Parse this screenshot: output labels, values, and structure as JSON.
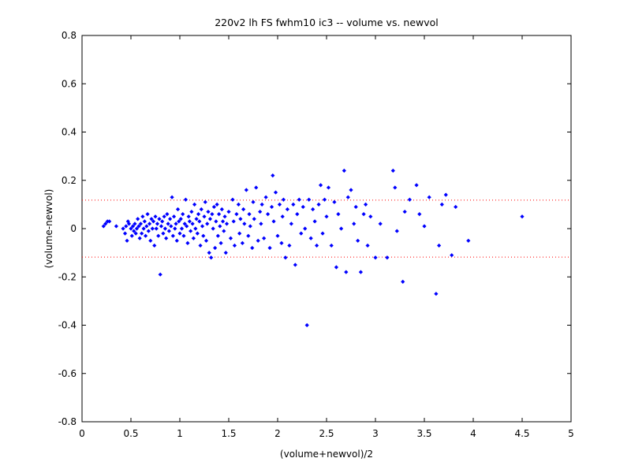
{
  "chart_data": {
    "type": "scatter",
    "title": "220v2 lh FS fwhm10 ic3 -- volume vs. newvol",
    "xlabel": "(volume+newvol)/2",
    "ylabel": "(volume-newvol)",
    "xlim": [
      0,
      5
    ],
    "ylim": [
      -0.8,
      0.8
    ],
    "xticks": [
      0,
      0.5,
      1,
      1.5,
      2,
      2.5,
      3,
      3.5,
      4,
      4.5,
      5
    ],
    "yticks": [
      0.8,
      0.6,
      0.4,
      0.2,
      0,
      -0.2,
      -0.4,
      -0.6,
      -0.8
    ],
    "grid": false,
    "colors": {
      "points": "#0000ff",
      "reference_lines": "#ff0000",
      "axes": "#000000"
    },
    "reference_lines": [
      0.118,
      -0.118
    ],
    "series": [
      {
        "points": [
          [
            0.22,
            0.01
          ],
          [
            0.24,
            0.02
          ],
          [
            0.26,
            0.03
          ],
          [
            0.28,
            0.03
          ],
          [
            0.35,
            0.01
          ],
          [
            0.42,
            0.0
          ],
          [
            0.44,
            -0.02
          ],
          [
            0.45,
            0.01
          ],
          [
            0.46,
            -0.05
          ],
          [
            0.47,
            0.03
          ],
          [
            0.48,
            0.02
          ],
          [
            0.5,
            0.0
          ],
          [
            0.51,
            -0.03
          ],
          [
            0.52,
            0.01
          ],
          [
            0.53,
            -0.01
          ],
          [
            0.54,
            0.02
          ],
          [
            0.55,
            -0.02
          ],
          [
            0.56,
            0.0
          ],
          [
            0.57,
            0.04
          ],
          [
            0.58,
            0.01
          ],
          [
            0.59,
            -0.04
          ],
          [
            0.6,
            0.02
          ],
          [
            0.61,
            -0.02
          ],
          [
            0.62,
            0.05
          ],
          [
            0.63,
            0.0
          ],
          [
            0.64,
            0.03
          ],
          [
            0.65,
            -0.03
          ],
          [
            0.66,
            0.01
          ],
          [
            0.67,
            0.06
          ],
          [
            0.68,
            -0.01
          ],
          [
            0.69,
            0.02
          ],
          [
            0.7,
            -0.05
          ],
          [
            0.71,
            0.04
          ],
          [
            0.72,
            0.0
          ],
          [
            0.73,
            0.03
          ],
          [
            0.74,
            -0.07
          ],
          [
            0.75,
            0.05
          ],
          [
            0.76,
            0.0
          ],
          [
            0.77,
            0.02
          ],
          [
            0.78,
            -0.03
          ],
          [
            0.79,
            0.04
          ],
          [
            0.8,
            -0.19
          ],
          [
            0.81,
            0.01
          ],
          [
            0.82,
            0.03
          ],
          [
            0.83,
            -0.02
          ],
          [
            0.84,
            0.05
          ],
          [
            0.85,
            0.0
          ],
          [
            0.86,
            -0.04
          ],
          [
            0.87,
            0.06
          ],
          [
            0.88,
            0.02
          ],
          [
            0.89,
            -0.01
          ],
          [
            0.9,
            0.04
          ],
          [
            0.91,
            0.01
          ],
          [
            0.92,
            0.13
          ],
          [
            0.93,
            -0.03
          ],
          [
            0.94,
            0.05
          ],
          [
            0.95,
            0.0
          ],
          [
            0.96,
            0.02
          ],
          [
            0.97,
            -0.05
          ],
          [
            0.98,
            0.08
          ],
          [
            0.99,
            0.03
          ],
          [
            1.0,
            -0.02
          ],
          [
            1.01,
            0.04
          ],
          [
            1.02,
            0.0
          ],
          [
            1.03,
            0.06
          ],
          [
            1.04,
            -0.03
          ],
          [
            1.05,
            0.02
          ],
          [
            1.06,
            0.12
          ],
          [
            1.07,
            0.01
          ],
          [
            1.08,
            -0.06
          ],
          [
            1.09,
            0.05
          ],
          [
            1.1,
            0.03
          ],
          [
            1.11,
            -0.01
          ],
          [
            1.12,
            0.07
          ],
          [
            1.13,
            0.02
          ],
          [
            1.14,
            -0.04
          ],
          [
            1.15,
            0.1
          ],
          [
            1.16,
            0.0
          ],
          [
            1.17,
            0.04
          ],
          [
            1.18,
            -0.02
          ],
          [
            1.19,
            0.06
          ],
          [
            1.2,
            0.03
          ],
          [
            1.21,
            -0.07
          ],
          [
            1.22,
            0.08
          ],
          [
            1.23,
            0.01
          ],
          [
            1.24,
            -0.03
          ],
          [
            1.25,
            0.05
          ],
          [
            1.26,
            0.11
          ],
          [
            1.27,
            -0.05
          ],
          [
            1.28,
            0.02
          ],
          [
            1.29,
            0.07
          ],
          [
            1.3,
            -0.1
          ],
          [
            1.31,
            0.04
          ],
          [
            1.32,
            -0.12
          ],
          [
            1.33,
            0.06
          ],
          [
            1.34,
            0.0
          ],
          [
            1.35,
            0.09
          ],
          [
            1.36,
            -0.08
          ],
          [
            1.37,
            0.03
          ],
          [
            1.38,
            0.1
          ],
          [
            1.39,
            -0.03
          ],
          [
            1.4,
            0.06
          ],
          [
            1.41,
            0.01
          ],
          [
            1.42,
            -0.06
          ],
          [
            1.43,
            0.08
          ],
          [
            1.44,
            0.03
          ],
          [
            1.45,
            -0.01
          ],
          [
            1.46,
            0.05
          ],
          [
            1.47,
            -0.1
          ],
          [
            1.48,
            0.02
          ],
          [
            1.5,
            0.07
          ],
          [
            1.52,
            -0.04
          ],
          [
            1.54,
            0.12
          ],
          [
            1.55,
            0.03
          ],
          [
            1.56,
            -0.07
          ],
          [
            1.58,
            0.06
          ],
          [
            1.6,
            0.1
          ],
          [
            1.61,
            -0.02
          ],
          [
            1.62,
            0.04
          ],
          [
            1.64,
            -0.06
          ],
          [
            1.65,
            0.08
          ],
          [
            1.66,
            0.02
          ],
          [
            1.68,
            0.16
          ],
          [
            1.7,
            -0.03
          ],
          [
            1.71,
            0.06
          ],
          [
            1.72,
            0.01
          ],
          [
            1.74,
            -0.08
          ],
          [
            1.75,
            0.11
          ],
          [
            1.76,
            0.04
          ],
          [
            1.78,
            0.17
          ],
          [
            1.8,
            -0.05
          ],
          [
            1.82,
            0.07
          ],
          [
            1.83,
            0.02
          ],
          [
            1.84,
            0.1
          ],
          [
            1.86,
            -0.04
          ],
          [
            1.88,
            0.13
          ],
          [
            1.9,
            0.06
          ],
          [
            1.92,
            -0.08
          ],
          [
            1.94,
            0.09
          ],
          [
            1.95,
            0.22
          ],
          [
            1.96,
            0.03
          ],
          [
            1.98,
            0.15
          ],
          [
            2.0,
            -0.03
          ],
          [
            2.02,
            0.1
          ],
          [
            2.04,
            -0.06
          ],
          [
            2.05,
            0.05
          ],
          [
            2.06,
            0.12
          ],
          [
            2.08,
            -0.12
          ],
          [
            2.1,
            0.08
          ],
          [
            2.12,
            -0.07
          ],
          [
            2.14,
            0.02
          ],
          [
            2.16,
            0.1
          ],
          [
            2.18,
            -0.15
          ],
          [
            2.2,
            0.06
          ],
          [
            2.22,
            0.12
          ],
          [
            2.24,
            -0.02
          ],
          [
            2.26,
            0.09
          ],
          [
            2.28,
            0.0
          ],
          [
            2.3,
            -0.4
          ],
          [
            2.32,
            0.12
          ],
          [
            2.34,
            -0.04
          ],
          [
            2.36,
            0.08
          ],
          [
            2.38,
            0.03
          ],
          [
            2.4,
            -0.07
          ],
          [
            2.42,
            0.1
          ],
          [
            2.44,
            0.18
          ],
          [
            2.46,
            -0.02
          ],
          [
            2.48,
            0.12
          ],
          [
            2.5,
            0.05
          ],
          [
            2.52,
            0.17
          ],
          [
            2.55,
            -0.07
          ],
          [
            2.58,
            0.11
          ],
          [
            2.6,
            -0.16
          ],
          [
            2.62,
            0.06
          ],
          [
            2.65,
            0.0
          ],
          [
            2.68,
            0.24
          ],
          [
            2.7,
            -0.18
          ],
          [
            2.72,
            0.13
          ],
          [
            2.75,
            0.16
          ],
          [
            2.78,
            0.02
          ],
          [
            2.8,
            0.09
          ],
          [
            2.82,
            -0.05
          ],
          [
            2.85,
            -0.18
          ],
          [
            2.88,
            0.06
          ],
          [
            2.9,
            0.1
          ],
          [
            2.92,
            -0.07
          ],
          [
            2.95,
            0.05
          ],
          [
            3.0,
            -0.12
          ],
          [
            3.05,
            0.02
          ],
          [
            3.12,
            -0.12
          ],
          [
            3.18,
            0.24
          ],
          [
            3.2,
            0.17
          ],
          [
            3.22,
            -0.01
          ],
          [
            3.28,
            -0.22
          ],
          [
            3.3,
            0.07
          ],
          [
            3.35,
            0.12
          ],
          [
            3.42,
            0.18
          ],
          [
            3.45,
            0.06
          ],
          [
            3.5,
            0.01
          ],
          [
            3.55,
            0.13
          ],
          [
            3.62,
            -0.27
          ],
          [
            3.65,
            -0.07
          ],
          [
            3.68,
            0.1
          ],
          [
            3.72,
            0.14
          ],
          [
            3.78,
            -0.11
          ],
          [
            3.82,
            0.09
          ],
          [
            3.95,
            -0.05
          ],
          [
            4.5,
            0.05
          ]
        ]
      }
    ]
  }
}
